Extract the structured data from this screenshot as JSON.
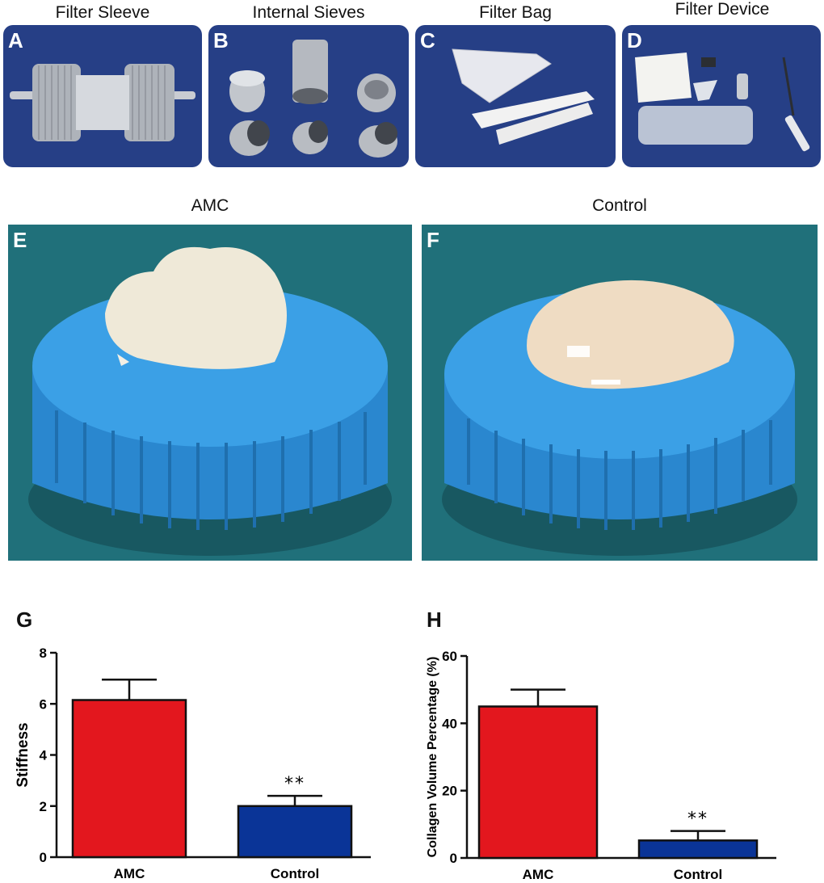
{
  "panels_top": [
    {
      "letter": "A",
      "caption": "Filter Sleeve"
    },
    {
      "letter": "B",
      "caption": "Internal Sieves"
    },
    {
      "letter": "C",
      "caption": "Filter Bag"
    },
    {
      "letter": "D",
      "caption": "Filter Device"
    }
  ],
  "panels_mid": [
    {
      "letter": "E",
      "caption": "AMC"
    },
    {
      "letter": "F",
      "caption": "Control"
    }
  ],
  "colors": {
    "amc": "#e3171e",
    "control": "#0a3497",
    "photo_bg_top": "#263f86",
    "photo_bg_mid": "#1f6f73",
    "cap_blue": "#2f93d8"
  },
  "chart_data": [
    {
      "letter": "G",
      "type": "bar",
      "categories": [
        "AMC",
        "Control"
      ],
      "values": [
        6.15,
        2.0
      ],
      "errors": [
        0.8,
        0.4
      ],
      "significance": [
        "",
        "**"
      ],
      "ylabel": "Stiffness",
      "ylim": [
        0,
        8
      ],
      "yticks": [
        "0",
        "2",
        "4",
        "6",
        "8"
      ]
    },
    {
      "letter": "H",
      "type": "bar",
      "categories": [
        "AMC",
        "Control"
      ],
      "values": [
        45,
        5.2
      ],
      "errors": [
        5,
        2.8
      ],
      "significance": [
        "",
        "**"
      ],
      "ylabel": "Collagen Volume Percentage (%)",
      "ylim": [
        0,
        60
      ],
      "yticks": [
        "0",
        "20",
        "40",
        "60"
      ]
    }
  ]
}
